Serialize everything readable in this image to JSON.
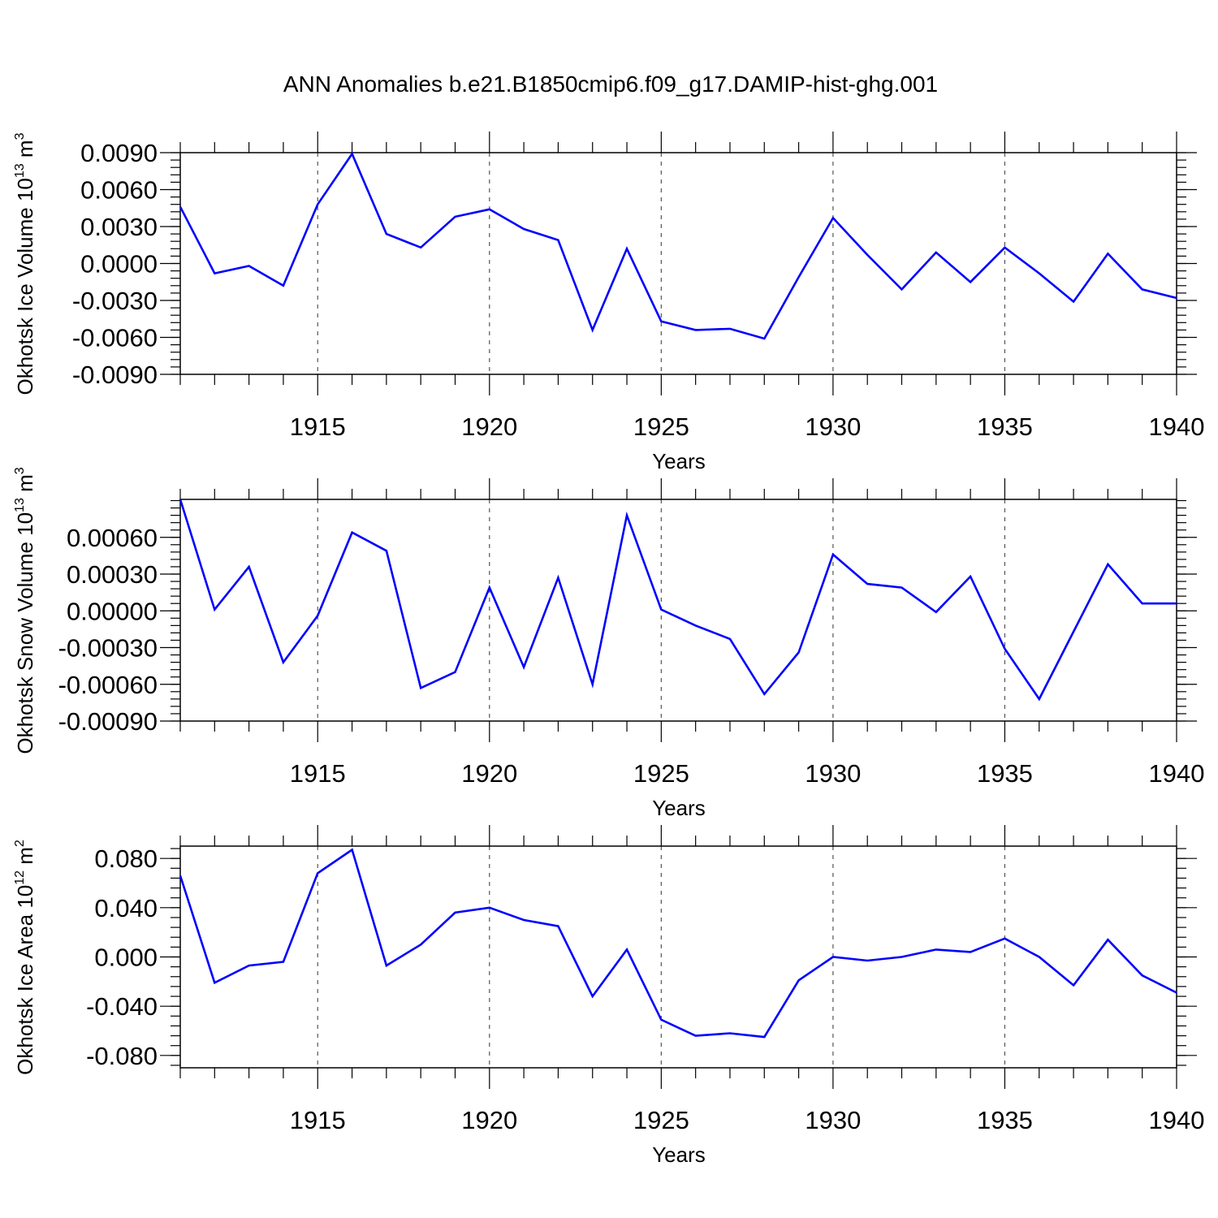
{
  "title": "ANN Anomalies b.e21.B1850cmip6.f09_g17.DAMIP-hist-ghg.001",
  "line_color": "#0000ff",
  "chart_data": [
    {
      "type": "line",
      "ylabel": "Okhotsk Ice Volume 10",
      "ylabel_exp": "13",
      "ylabel_unit": " m",
      "ylabel_unit_exp": "3",
      "xlabel": "Years",
      "xlim": [
        1911,
        1940
      ],
      "ylim": [
        -0.009,
        0.009
      ],
      "yticks": [
        0.009,
        0.006,
        0.003,
        0.0,
        -0.003,
        -0.006,
        -0.009
      ],
      "ytick_labels": [
        "0.0090",
        "0.0060",
        "0.0030",
        "0.0000",
        "-0.0030",
        "-0.0060",
        "-0.0090"
      ],
      "xticks": [
        1915,
        1920,
        1925,
        1930,
        1935,
        1940
      ],
      "xtick_labels": [
        "1915",
        "1920",
        "1925",
        "1930",
        "1935",
        "1940"
      ],
      "grid": "dashed vertical at major x ticks",
      "x": [
        1911,
        1912,
        1913,
        1914,
        1915,
        1916,
        1917,
        1918,
        1919,
        1920,
        1921,
        1922,
        1923,
        1924,
        1925,
        1926,
        1927,
        1928,
        1929,
        1930,
        1931,
        1932,
        1933,
        1934,
        1935,
        1936,
        1937,
        1938,
        1939,
        1940
      ],
      "values": [
        0.0046,
        -0.0008,
        -0.0002,
        -0.0018,
        0.0048,
        0.0089,
        0.0024,
        0.0013,
        0.0038,
        0.0044,
        0.0028,
        0.0019,
        -0.0054,
        0.0012,
        -0.0047,
        -0.0054,
        -0.0053,
        -0.0061,
        -0.0011,
        0.0037,
        0.0007,
        -0.0021,
        0.0009,
        -0.0015,
        0.0013,
        -0.0008,
        -0.0031,
        0.0008,
        -0.0021,
        -0.0028
      ]
    },
    {
      "type": "line",
      "ylabel": "Okhotsk Snow Volume 10",
      "ylabel_exp": "13",
      "ylabel_unit": " m",
      "ylabel_unit_exp": "3",
      "xlabel": "Years",
      "xlim": [
        1911,
        1940
      ],
      "ylim": [
        -0.0009,
        0.00091
      ],
      "yticks": [
        0.0006,
        0.0003,
        0.0,
        -0.0003,
        -0.0006,
        -0.0009
      ],
      "ytick_labels": [
        "0.00060",
        "0.00030",
        "0.00000",
        "-0.00030",
        "-0.00060",
        "-0.00090"
      ],
      "xticks": [
        1915,
        1920,
        1925,
        1930,
        1935,
        1940
      ],
      "xtick_labels": [
        "1915",
        "1920",
        "1925",
        "1930",
        "1935",
        "1940"
      ],
      "grid": "dashed vertical at major x ticks",
      "x": [
        1911,
        1912,
        1913,
        1914,
        1915,
        1916,
        1917,
        1918,
        1919,
        1920,
        1921,
        1922,
        1923,
        1924,
        1925,
        1926,
        1927,
        1928,
        1929,
        1930,
        1931,
        1932,
        1933,
        1934,
        1935,
        1936,
        1937,
        1938,
        1939,
        1940
      ],
      "values": [
        0.00091,
        1e-05,
        0.00036,
        -0.00042,
        -4e-05,
        0.00064,
        0.00049,
        -0.00063,
        -0.0005,
        0.00019,
        -0.00046,
        0.00027,
        -0.0006,
        0.00078,
        1e-05,
        -0.00012,
        -0.00023,
        -0.00068,
        -0.00034,
        0.00046,
        0.00022,
        0.00019,
        -1e-05,
        0.00028,
        -0.00031,
        -0.00072,
        -0.00017,
        0.00038,
        6e-05,
        6e-05
      ]
    },
    {
      "type": "line",
      "ylabel": "Okhotsk Ice Area 10",
      "ylabel_exp": "12",
      "ylabel_unit": " m",
      "ylabel_unit_exp": "2",
      "xlabel": "Years",
      "xlim": [
        1911,
        1940
      ],
      "ylim": [
        -0.09,
        0.09
      ],
      "yticks": [
        0.08,
        0.04,
        0.0,
        -0.04,
        -0.08
      ],
      "ytick_labels": [
        "0.080",
        "0.040",
        "0.000",
        "-0.040",
        "-0.080"
      ],
      "xticks": [
        1915,
        1920,
        1925,
        1930,
        1935,
        1940
      ],
      "xtick_labels": [
        "1915",
        "1920",
        "1925",
        "1930",
        "1935",
        "1940"
      ],
      "grid": "dashed vertical at major x ticks",
      "x": [
        1911,
        1912,
        1913,
        1914,
        1915,
        1916,
        1917,
        1918,
        1919,
        1920,
        1921,
        1922,
        1923,
        1924,
        1925,
        1926,
        1927,
        1928,
        1929,
        1930,
        1931,
        1932,
        1933,
        1934,
        1935,
        1936,
        1937,
        1938,
        1939,
        1940
      ],
      "values": [
        0.066,
        -0.021,
        -0.007,
        -0.004,
        0.068,
        0.087,
        -0.007,
        0.01,
        0.036,
        0.04,
        0.03,
        0.025,
        -0.032,
        0.006,
        -0.051,
        -0.064,
        -0.062,
        -0.065,
        -0.019,
        0.0,
        -0.003,
        0.0,
        0.006,
        0.004,
        0.015,
        0.0,
        -0.023,
        0.014,
        -0.015,
        -0.029
      ]
    }
  ]
}
